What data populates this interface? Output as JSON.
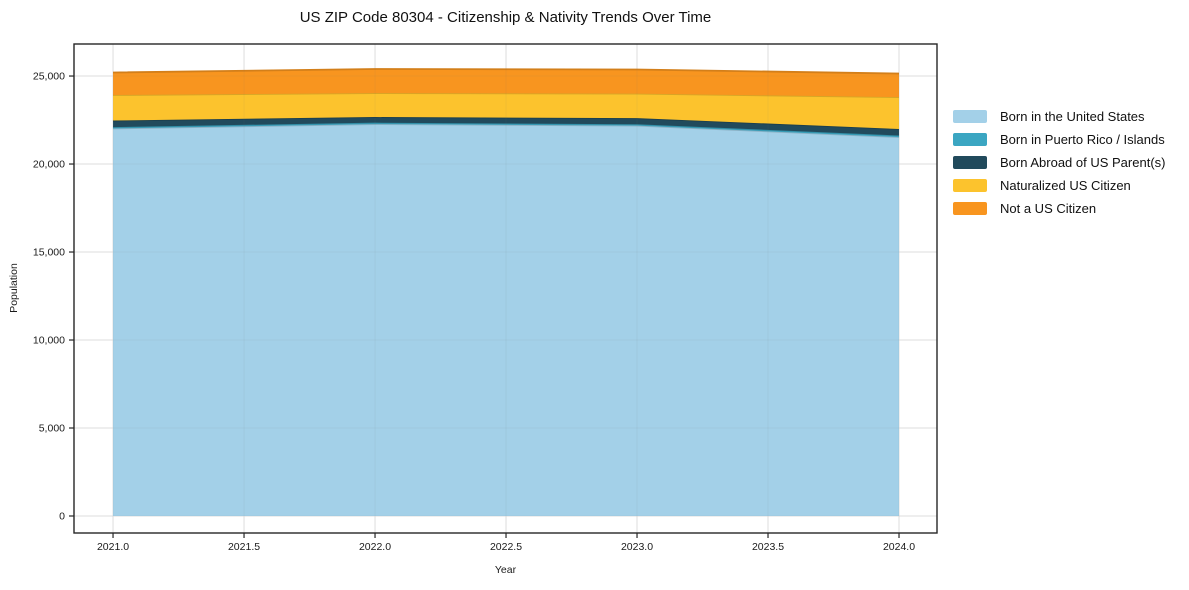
{
  "chart_data": {
    "type": "area",
    "stacked": true,
    "title": "US ZIP Code 80304 - Citizenship & Nativity Trends Over Time",
    "xlabel": "Year",
    "ylabel": "Population",
    "x": [
      2021,
      2022,
      2023,
      2024
    ],
    "series": [
      {
        "name": "Born in the United States",
        "color": "#a3d0e8",
        "values": [
          22020,
          22270,
          22180,
          21530
        ]
      },
      {
        "name": "Born in Puerto Rico / Islands",
        "color": "#3ba6c2",
        "values": [
          80,
          80,
          80,
          90
        ]
      },
      {
        "name": "Born Abroad of US Parent(s)",
        "color": "#214a5c",
        "values": [
          370,
          320,
          350,
          370
        ]
      },
      {
        "name": "Naturalized US Citizen",
        "color": "#fcc32d",
        "values": [
          1450,
          1360,
          1390,
          1810
        ]
      },
      {
        "name": "Not a US Citizen",
        "color": "#f8951f",
        "values": [
          1280,
          1370,
          1370,
          1340
        ]
      }
    ],
    "stacked_totals": [
      25200,
      25400,
      25370,
      25140
    ],
    "xlim": [
      2020.851,
      2024.145
    ],
    "ylim": [
      -966,
      26820
    ],
    "xticks": {
      "values": [
        2021,
        2021.5,
        2022,
        2022.5,
        2023,
        2023.5,
        2024
      ],
      "labels": [
        "2021.0",
        "2021.5",
        "2022.0",
        "2022.5",
        "2023.0",
        "2023.5",
        "2024.0"
      ]
    },
    "yticks": {
      "values": [
        0,
        5000,
        10000,
        15000,
        20000,
        25000
      ],
      "labels": [
        "0",
        "5,000",
        "10,000",
        "15,000",
        "20,000",
        "25,000"
      ]
    },
    "grid": true,
    "legend_position": "right",
    "grid_color": "#e7e7e7",
    "frame_color": "#262626"
  }
}
